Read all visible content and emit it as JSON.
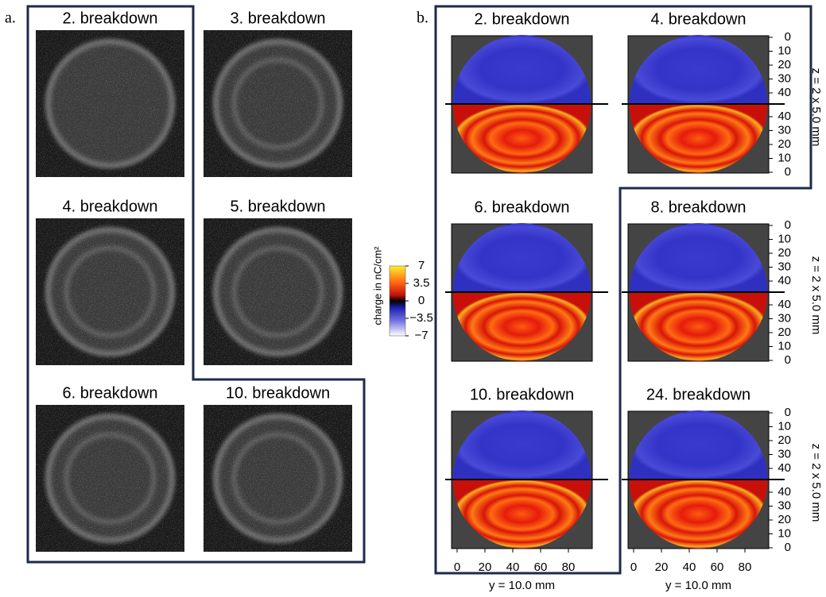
{
  "panel_a": {
    "label": "a.",
    "panels": [
      "2. breakdown",
      "3. breakdown",
      "4. breakdown",
      "5. breakdown",
      "6. breakdown",
      "10. breakdown"
    ]
  },
  "panel_b": {
    "label": "b.",
    "panels": [
      "2. breakdown",
      "4. breakdown",
      "6. breakdown",
      "8. breakdown",
      "10. breakdown",
      "24. breakdown"
    ],
    "colorbar": {
      "label": "charge in nC/cm²",
      "ticks": [
        "7",
        "3.5",
        "0",
        "−3.5",
        "−7"
      ]
    },
    "z_axis": {
      "label": "z = 2 x 5.0 mm",
      "ticks_upper": [
        0,
        10,
        20,
        30,
        40
      ],
      "ticks_lower": [
        40,
        30,
        20,
        10,
        0
      ]
    },
    "y_axis": {
      "label": "y = 10.0 mm",
      "ticks": [
        0,
        20,
        40,
        60,
        80
      ]
    }
  }
}
